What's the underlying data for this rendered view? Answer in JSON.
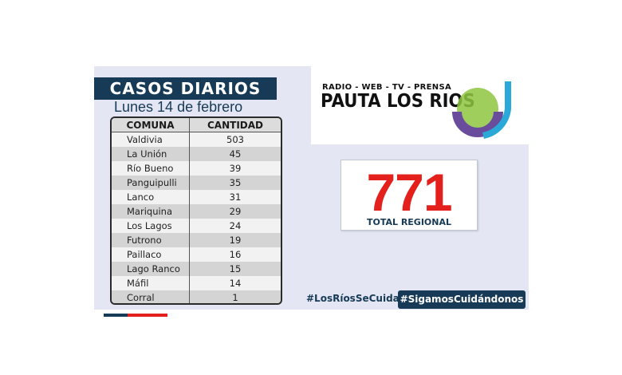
{
  "header": {
    "title": "CASOS DIARIOS",
    "date": "Lunes 14 de febrero"
  },
  "table": {
    "columns": [
      "COMUNA",
      "CANTIDAD"
    ],
    "rows": [
      {
        "comuna": "Valdivia",
        "cantidad": "503"
      },
      {
        "comuna": "La Unión",
        "cantidad": "45"
      },
      {
        "comuna": "Río Bueno",
        "cantidad": "39"
      },
      {
        "comuna": "Panguipulli",
        "cantidad": "35"
      },
      {
        "comuna": "Lanco",
        "cantidad": "31"
      },
      {
        "comuna": "Mariquina",
        "cantidad": "29"
      },
      {
        "comuna": "Los Lagos",
        "cantidad": "24"
      },
      {
        "comuna": "Futrono",
        "cantidad": "19"
      },
      {
        "comuna": "Paillaco",
        "cantidad": "16"
      },
      {
        "comuna": "Lago Ranco",
        "cantidad": "15"
      },
      {
        "comuna": "Máfil",
        "cantidad": "14"
      },
      {
        "comuna": "Corral",
        "cantidad": "1"
      }
    ]
  },
  "logo": {
    "tagline": "RADIO - WEB - TV - PRENSA",
    "name": "PAUTA LOS RIOS",
    "icon": "pauta-los-rios-logo-mark"
  },
  "total": {
    "number": "771",
    "label": "TOTAL REGIONAL"
  },
  "hashtags": {
    "primary": "#LosRíosSeCuida",
    "secondary": "#SigamosCuidándonos"
  },
  "colors": {
    "navy": "#173a57",
    "red": "#e3201b",
    "panel": "#e4e7f3",
    "logo_green": "#8ec641",
    "logo_blue": "#2aa8d8",
    "logo_purple": "#6a4c9c"
  }
}
